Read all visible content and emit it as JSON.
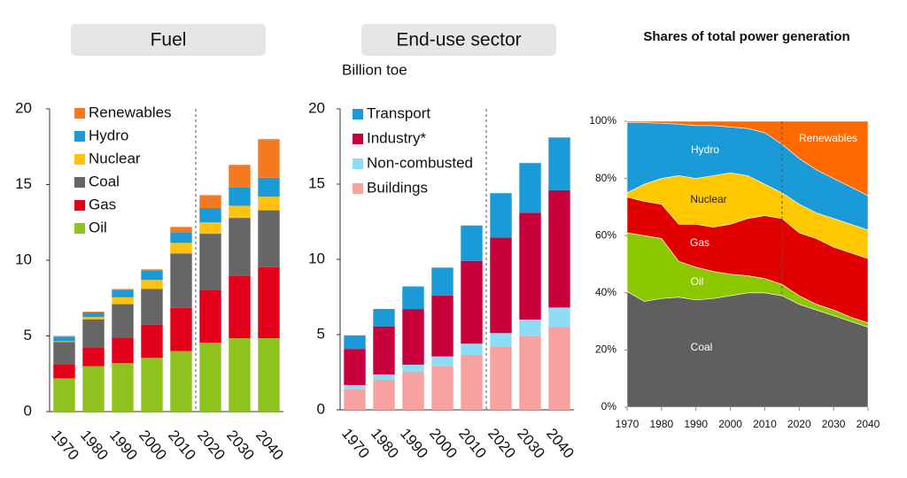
{
  "chart_data": [
    {
      "type": "stacked_bar",
      "title": "Fuel",
      "categories": [
        "1970",
        "1980",
        "1990",
        "2000",
        "2010",
        "2020",
        "2030",
        "2040"
      ],
      "series": [
        {
          "name": "Oil",
          "color": "#8dc21f",
          "values": [
            2.2,
            3.0,
            3.2,
            3.55,
            4.0,
            4.55,
            4.85,
            4.85
          ]
        },
        {
          "name": "Gas",
          "color": "#e2001a",
          "values": [
            0.9,
            1.25,
            1.7,
            2.2,
            2.85,
            3.5,
            4.1,
            4.7
          ]
        },
        {
          "name": "Coal",
          "color": "#666666",
          "values": [
            1.5,
            1.85,
            2.2,
            2.35,
            3.6,
            3.7,
            3.85,
            3.75
          ]
        },
        {
          "name": "Nuclear",
          "color": "#ffc20e",
          "values": [
            0.05,
            0.15,
            0.45,
            0.6,
            0.7,
            0.75,
            0.8,
            0.9
          ]
        },
        {
          "name": "Hydro",
          "color": "#1a9bd7",
          "values": [
            0.3,
            0.3,
            0.5,
            0.6,
            0.7,
            0.95,
            1.2,
            1.25
          ]
        },
        {
          "name": "Renewables",
          "color": "#f47920",
          "values": [
            0.05,
            0.05,
            0.05,
            0.1,
            0.35,
            0.85,
            1.5,
            2.55
          ]
        }
      ],
      "ylim": [
        0,
        20
      ],
      "yticks": [
        0,
        5,
        10,
        15,
        20
      ],
      "legend": "top-left"
    },
    {
      "type": "stacked_bar",
      "title": "End-use sector",
      "ylabel": "Billion toe",
      "categories": [
        "1970",
        "1980",
        "1990",
        "2000",
        "2010",
        "2020",
        "2030",
        "2040"
      ],
      "series": [
        {
          "name": "Buildings",
          "color": "#f7a1a1",
          "values": [
            1.35,
            2.0,
            2.5,
            2.9,
            3.65,
            4.2,
            4.9,
            5.5
          ]
        },
        {
          "name": "Non-combusted",
          "color": "#8fdcf5",
          "values": [
            0.3,
            0.35,
            0.5,
            0.65,
            0.75,
            0.9,
            1.1,
            1.3
          ]
        },
        {
          "name": "Industry*",
          "color": "#c8003c",
          "values": [
            2.4,
            3.2,
            3.7,
            4.05,
            5.5,
            6.35,
            7.1,
            7.8
          ]
        },
        {
          "name": "Transport",
          "color": "#1a9bd7",
          "values": [
            0.9,
            1.15,
            1.5,
            1.85,
            2.35,
            2.95,
            3.3,
            3.5
          ]
        }
      ],
      "ylim": [
        0,
        20
      ],
      "yticks": [
        0,
        5,
        10,
        15,
        20
      ],
      "legend": "top-left"
    },
    {
      "type": "stacked_area",
      "title": "Shares of total power generation",
      "x": [
        1970,
        1975,
        1980,
        1985,
        1990,
        1995,
        2000,
        2005,
        2010,
        2015,
        2020,
        2025,
        2030,
        2035,
        2040
      ],
      "series": [
        {
          "name": "Coal",
          "color": "#5f5f5f",
          "values": [
            40.5,
            37,
            38,
            38.5,
            37.5,
            38,
            39,
            40,
            40,
            39,
            36,
            34,
            32,
            30,
            28
          ]
        },
        {
          "name": "Oil",
          "color": "#8cc800",
          "values": [
            20.5,
            23,
            21,
            12.5,
            11.5,
            9.5,
            7.5,
            6,
            5,
            4,
            3,
            2,
            2,
            1.5,
            1.5
          ]
        },
        {
          "name": "Gas",
          "color": "#e00000",
          "values": [
            12.5,
            12,
            12,
            13,
            15,
            15.5,
            17.5,
            20,
            22,
            23,
            22,
            23,
            22,
            22.5,
            22.5
          ]
        },
        {
          "name": "Nuclear",
          "color": "#ffc800",
          "values": [
            1.5,
            6,
            9,
            17,
            16,
            18,
            18,
            15,
            11,
            9,
            10,
            9,
            10,
            10,
            10
          ]
        },
        {
          "name": "Hydro",
          "color": "#1a9bd7",
          "values": [
            24.5,
            21.5,
            19.3,
            18,
            18.5,
            17.5,
            16,
            16.5,
            18,
            17,
            16,
            15,
            14,
            13,
            12
          ]
        },
        {
          "name": "Renewables",
          "color": "#ff6a00",
          "values": [
            0.5,
            0.5,
            0.7,
            1,
            1.5,
            1.5,
            2,
            2.5,
            4,
            8,
            13,
            17,
            20,
            23,
            26
          ]
        }
      ],
      "xlim": [
        1970,
        2040
      ],
      "xticks": [
        1970,
        1980,
        1990,
        2000,
        2010,
        2020,
        2030,
        2040
      ],
      "ylim": [
        0,
        100
      ],
      "yticks": [
        {
          "value": 0,
          "label": "0%"
        },
        {
          "value": 20,
          "label": "20%"
        },
        {
          "value": 40,
          "label": "40%"
        },
        {
          "value": 60,
          "label": "60%"
        },
        {
          "value": 80,
          "label": "80%"
        },
        {
          "value": 100,
          "label": "100%"
        }
      ]
    }
  ]
}
